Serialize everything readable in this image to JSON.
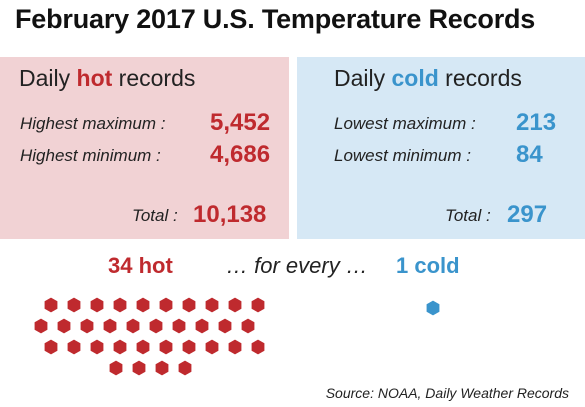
{
  "title": "February 2017 U.S. Temperature Records",
  "colors": {
    "hot": "#bf2a2e",
    "cold": "#3a94cc",
    "hot_panel": "#f1d2d4",
    "cold_panel": "#d6e8f5"
  },
  "hot_panel": {
    "heading_prefix": "Daily ",
    "heading_highlight": "hot",
    "heading_suffix": " records",
    "rows": [
      {
        "label": "Highest maximum :",
        "value": "5,452"
      },
      {
        "label": "Highest minimum :",
        "value": "4,686"
      }
    ],
    "total_label": "Total :",
    "total_value": "10,138"
  },
  "cold_panel": {
    "heading_prefix": "Daily ",
    "heading_highlight": "cold",
    "heading_suffix": " records",
    "rows": [
      {
        "label": "Lowest maximum :",
        "value": "213"
      },
      {
        "label": "Lowest minimum :",
        "value": "84"
      }
    ],
    "total_label": "Total :",
    "total_value": "297"
  },
  "ratio": {
    "hot_text": "34 hot",
    "middle_text": "… for every …",
    "cold_text": "1 cold"
  },
  "source": "Source: NOAA, Daily Weather Records",
  "chart_data": {
    "type": "pictogram",
    "title": "",
    "series": [
      {
        "name": "hot",
        "count": 34,
        "color": "#bf2a2e",
        "row_counts": [
          10,
          10,
          10,
          4
        ]
      },
      {
        "name": "cold",
        "count": 1,
        "color": "#3a94cc",
        "row_counts": [
          1
        ]
      }
    ]
  }
}
